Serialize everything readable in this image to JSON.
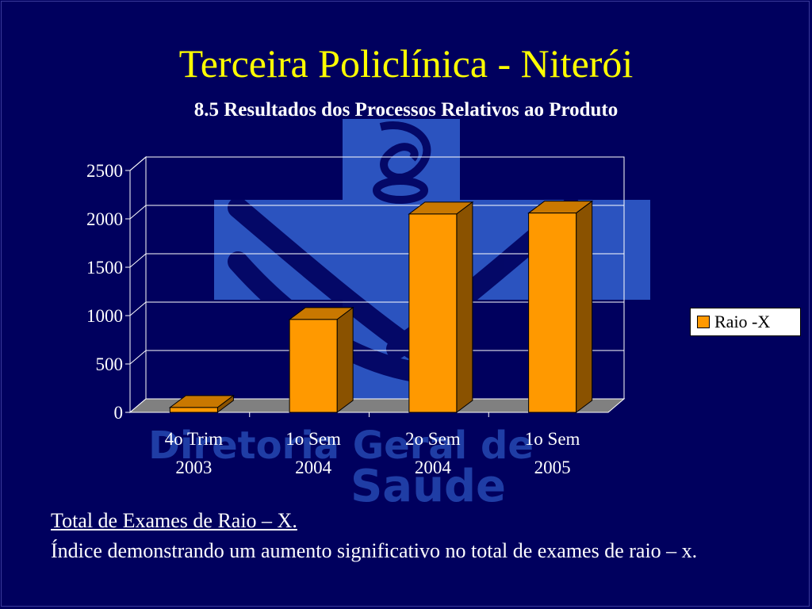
{
  "slide": {
    "title": "Terceira Policlínica - Niterói",
    "subtitle": "8.5 Resultados dos Processos Relativos ao Produto",
    "watermark_line1": "Diretoria Geral de",
    "watermark_line2": "Saude",
    "caption_title": "Total de Exames de Raio – X.",
    "caption_body": "Índice demonstrando um aumento significativo no total de exames de raio – x."
  },
  "colors": {
    "background": "#00005e",
    "title": "#ffff00",
    "bar_front": "#ff9900",
    "bar_side": "#8a5200",
    "bar_top": "#c97800",
    "watermark": "#3a6fe0"
  },
  "chart_data": {
    "type": "bar",
    "categories": [
      [
        "4o Trim",
        "2003"
      ],
      [
        "1o Sem",
        "2004"
      ],
      [
        "2o Sem",
        "2004"
      ],
      [
        "1o Sem",
        "2005"
      ]
    ],
    "series": [
      {
        "name": "Raio -X",
        "values": [
          50,
          960,
          2050,
          2060
        ]
      }
    ],
    "yticks": [
      0,
      500,
      1000,
      1500,
      2000,
      2500
    ],
    "ylim": [
      0,
      2500
    ],
    "grid": true,
    "legend": "right",
    "style": "3d-column"
  }
}
